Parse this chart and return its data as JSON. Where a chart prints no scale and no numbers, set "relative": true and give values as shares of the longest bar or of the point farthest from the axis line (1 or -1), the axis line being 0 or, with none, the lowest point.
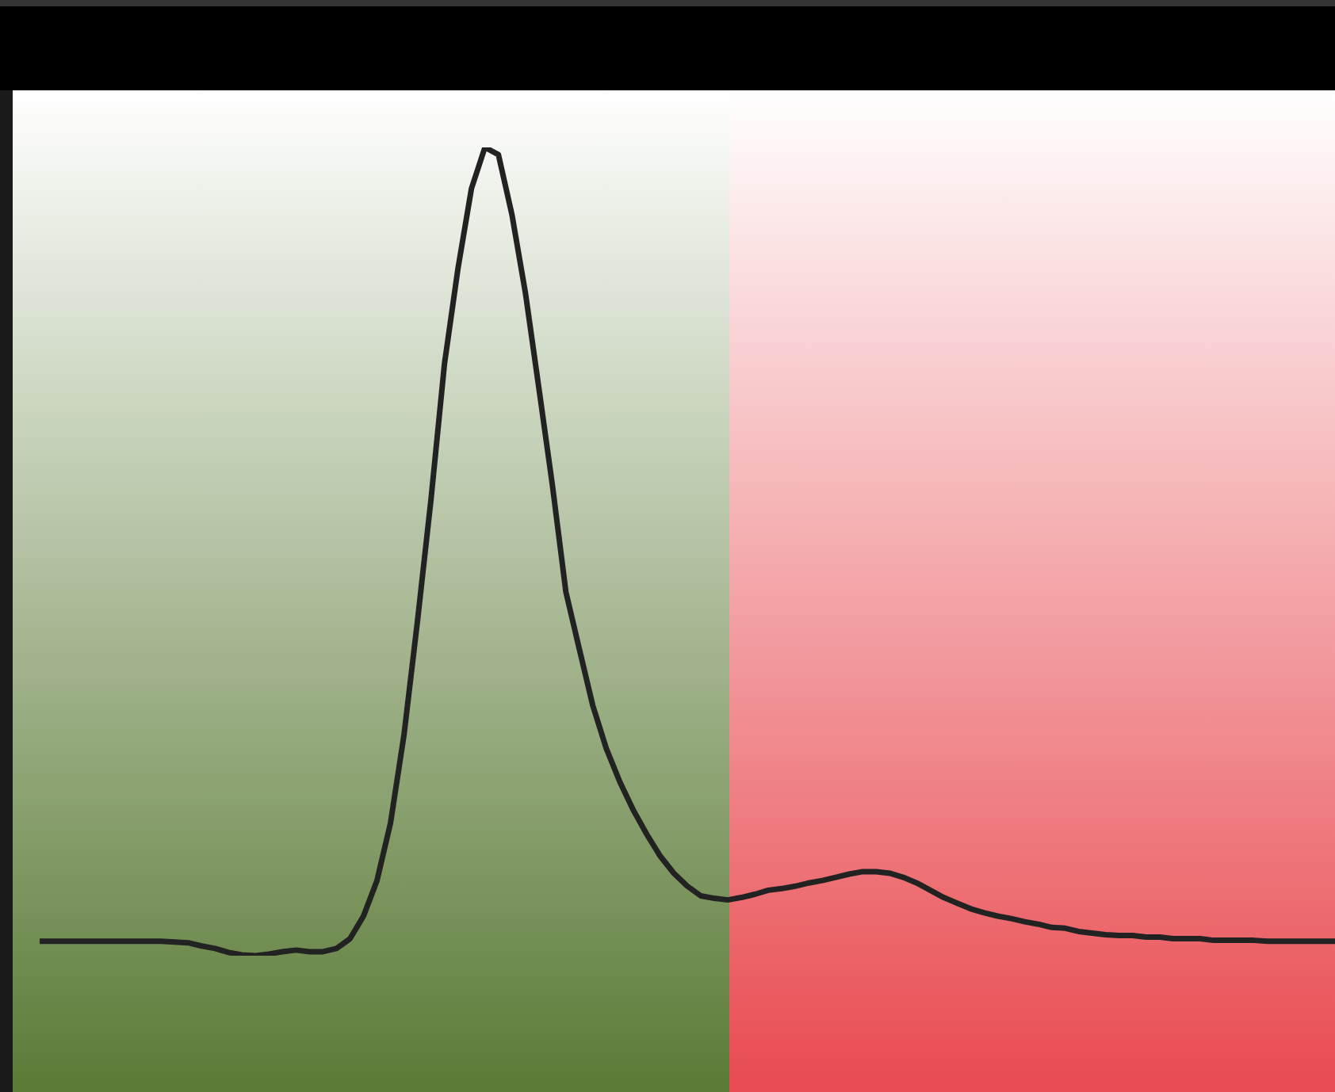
{
  "chart_data": {
    "type": "line",
    "relative": true,
    "legend": false,
    "marker": "none",
    "line_style": "solid",
    "categories": [
      null,
      null,
      null,
      null,
      null,
      null,
      null,
      null,
      null,
      null,
      null,
      null,
      null,
      null,
      null,
      null,
      null,
      null,
      null,
      null,
      null,
      null,
      null,
      null,
      null,
      null,
      null,
      null,
      null,
      null,
      null,
      null,
      null,
      null,
      null,
      null,
      null,
      null,
      null,
      null,
      null,
      null,
      null,
      null,
      null,
      null,
      null,
      null,
      null,
      null,
      null,
      null,
      null,
      null,
      null,
      null,
      null,
      null,
      null,
      null,
      null,
      null,
      null,
      null,
      null,
      null,
      null,
      null,
      null,
      null,
      null,
      null,
      null,
      null,
      null,
      null,
      null,
      null,
      null,
      null,
      null,
      null,
      null,
      null,
      null,
      null,
      null,
      null,
      null,
      null,
      null,
      null,
      null,
      null,
      null,
      null,
      null,
      null,
      null
    ],
    "series": [
      {
        "color": "#222222",
        "values": [
          null,
          null,
          0.018,
          0.018,
          0.018,
          0.018,
          0.018,
          0.018,
          0.018,
          0.018,
          0.018,
          0.018,
          0.017,
          0.016,
          0.012,
          0.009,
          0.004,
          0.001,
          0,
          0.002,
          0.005,
          0.007,
          0.005,
          0.005,
          0.009,
          0.021,
          0.049,
          0.093,
          0.164,
          0.273,
          0.414,
          0.564,
          0.732,
          0.85,
          0.949,
          1,
          0.991,
          0.917,
          0.82,
          0.702,
          0.582,
          0.45,
          0.379,
          0.309,
          0.256,
          0.215,
          0.18,
          0.15,
          0.123,
          0.102,
          0.086,
          0.074,
          0.071,
          0.069,
          0.072,
          0.076,
          0.081,
          0.083,
          0.086,
          0.09,
          0.093,
          0.097,
          0.101,
          0.104,
          0.104,
          0.102,
          0.097,
          0.09,
          0.081,
          0.072,
          0.065,
          0.058,
          0.053,
          0.049,
          0.046,
          0.042,
          0.039,
          0.035,
          0.034,
          0.03,
          0.028,
          0.026,
          0.025,
          0.025,
          0.023,
          0.023,
          0.021,
          0.021,
          0.021,
          0.019,
          0.019,
          0.019,
          0.019,
          0.018,
          0.018,
          0.018,
          0.018,
          0.018,
          0.018
        ]
      }
    ]
  }
}
